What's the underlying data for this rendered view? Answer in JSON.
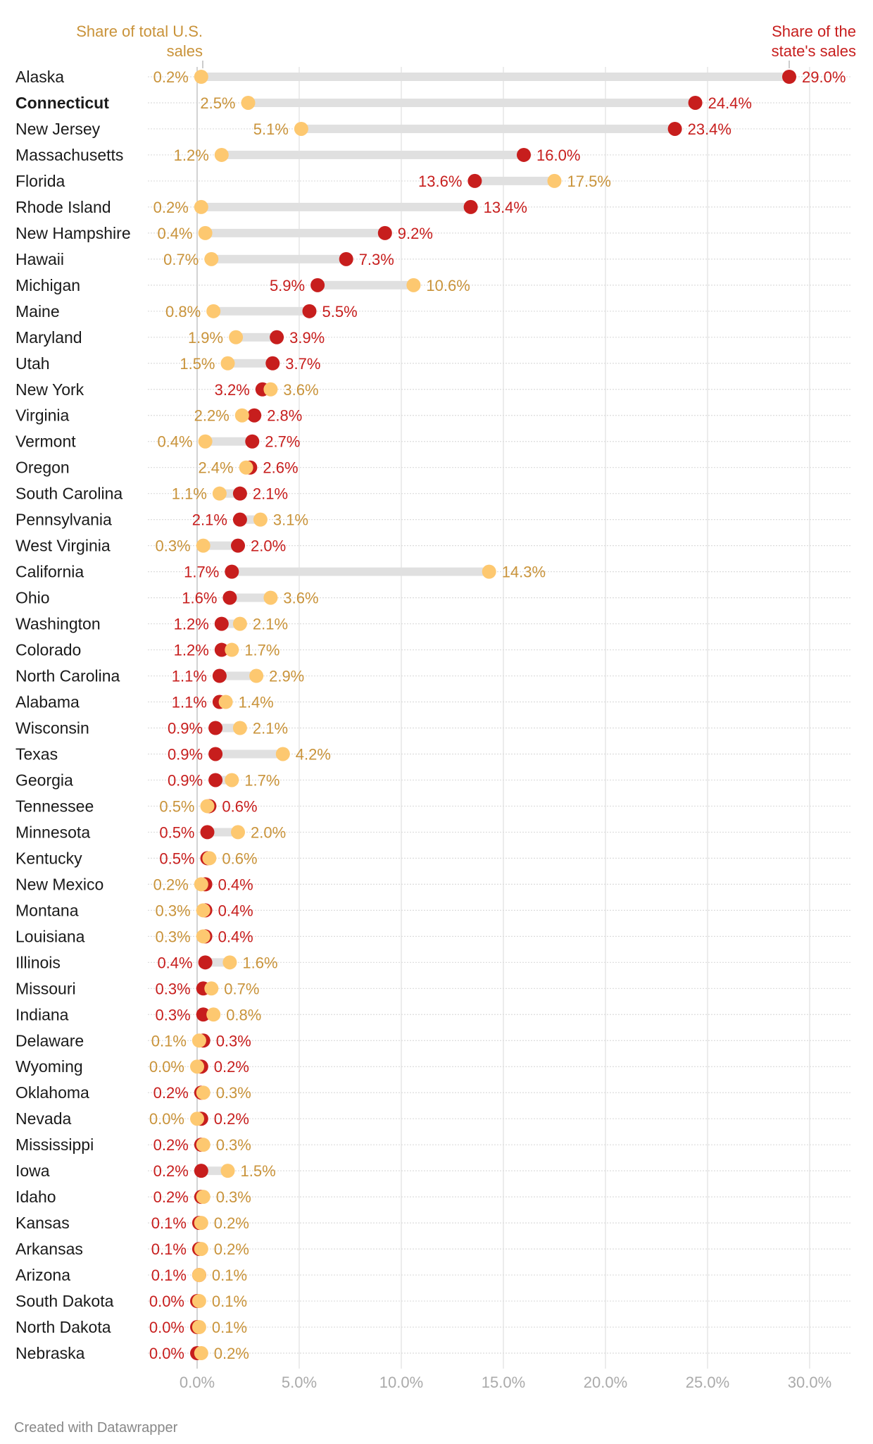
{
  "colors": {
    "state": "#c71e1d",
    "us": "#fdc870",
    "us_text": "#c9933a",
    "bar": "#e0e0e0"
  },
  "chart_data": {
    "type": "dot-range",
    "xlim": [
      0,
      32
    ],
    "x_ticks": [
      "0.0%",
      "5.0%",
      "10.0%",
      "15.0%",
      "20.0%",
      "25.0%",
      "30.0%"
    ],
    "x_tick_values": [
      0,
      5,
      10,
      15,
      20,
      25,
      30
    ],
    "grid": true,
    "series": [
      {
        "key": "us",
        "name": "Share of total U.S. sales"
      },
      {
        "key": "state",
        "name": "Share of the state's sales"
      }
    ],
    "highlight": "Connecticut",
    "rows": [
      {
        "state": "Alaska",
        "us": 0.2,
        "share": 29.0
      },
      {
        "state": "Connecticut",
        "us": 2.5,
        "share": 24.4
      },
      {
        "state": "New Jersey",
        "us": 5.1,
        "share": 23.4
      },
      {
        "state": "Massachusetts",
        "us": 1.2,
        "share": 16.0
      },
      {
        "state": "Florida",
        "us": 17.5,
        "share": 13.6
      },
      {
        "state": "Rhode Island",
        "us": 0.2,
        "share": 13.4
      },
      {
        "state": "New Hampshire",
        "us": 0.4,
        "share": 9.2
      },
      {
        "state": "Hawaii",
        "us": 0.7,
        "share": 7.3
      },
      {
        "state": "Michigan",
        "us": 10.6,
        "share": 5.9
      },
      {
        "state": "Maine",
        "us": 0.8,
        "share": 5.5
      },
      {
        "state": "Maryland",
        "us": 1.9,
        "share": 3.9
      },
      {
        "state": "Utah",
        "us": 1.5,
        "share": 3.7
      },
      {
        "state": "New York",
        "us": 3.6,
        "share": 3.2
      },
      {
        "state": "Virginia",
        "us": 2.2,
        "share": 2.8
      },
      {
        "state": "Vermont",
        "us": 0.4,
        "share": 2.7
      },
      {
        "state": "Oregon",
        "us": 2.4,
        "share": 2.6
      },
      {
        "state": "South Carolina",
        "us": 1.1,
        "share": 2.1
      },
      {
        "state": "Pennsylvania",
        "us": 3.1,
        "share": 2.1
      },
      {
        "state": "West Virginia",
        "us": 0.3,
        "share": 2.0
      },
      {
        "state": "California",
        "us": 14.3,
        "share": 1.7
      },
      {
        "state": "Ohio",
        "us": 3.6,
        "share": 1.6
      },
      {
        "state": "Washington",
        "us": 2.1,
        "share": 1.2
      },
      {
        "state": "Colorado",
        "us": 1.7,
        "share": 1.2
      },
      {
        "state": "North Carolina",
        "us": 2.9,
        "share": 1.1
      },
      {
        "state": "Alabama",
        "us": 1.4,
        "share": 1.1
      },
      {
        "state": "Wisconsin",
        "us": 2.1,
        "share": 0.9
      },
      {
        "state": "Texas",
        "us": 4.2,
        "share": 0.9
      },
      {
        "state": "Georgia",
        "us": 1.7,
        "share": 0.9
      },
      {
        "state": "Tennessee",
        "us": 0.5,
        "share": 0.6
      },
      {
        "state": "Minnesota",
        "us": 2.0,
        "share": 0.5
      },
      {
        "state": "Kentucky",
        "us": 0.6,
        "share": 0.5
      },
      {
        "state": "New Mexico",
        "us": 0.2,
        "share": 0.4
      },
      {
        "state": "Montana",
        "us": 0.3,
        "share": 0.4
      },
      {
        "state": "Louisiana",
        "us": 0.3,
        "share": 0.4
      },
      {
        "state": "Illinois",
        "us": 1.6,
        "share": 0.4
      },
      {
        "state": "Missouri",
        "us": 0.7,
        "share": 0.3
      },
      {
        "state": "Indiana",
        "us": 0.8,
        "share": 0.3
      },
      {
        "state": "Delaware",
        "us": 0.1,
        "share": 0.3
      },
      {
        "state": "Wyoming",
        "us": 0.0,
        "share": 0.2
      },
      {
        "state": "Oklahoma",
        "us": 0.3,
        "share": 0.2
      },
      {
        "state": "Nevada",
        "us": 0.0,
        "share": 0.2
      },
      {
        "state": "Mississippi",
        "us": 0.3,
        "share": 0.2
      },
      {
        "state": "Iowa",
        "us": 1.5,
        "share": 0.2
      },
      {
        "state": "Idaho",
        "us": 0.3,
        "share": 0.2
      },
      {
        "state": "Kansas",
        "us": 0.2,
        "share": 0.1
      },
      {
        "state": "Arkansas",
        "us": 0.2,
        "share": 0.1
      },
      {
        "state": "Arizona",
        "us": 0.1,
        "share": 0.1
      },
      {
        "state": "South Dakota",
        "us": 0.1,
        "share": 0.0
      },
      {
        "state": "North Dakota",
        "us": 0.1,
        "share": 0.0
      },
      {
        "state": "Nebraska",
        "us": 0.2,
        "share": 0.0
      }
    ]
  },
  "header": {
    "us_label_line1": "Share of total U.S.",
    "us_label_line2": "sales",
    "state_label_line1": "Share of the",
    "state_label_line2": "state's sales"
  },
  "footer": {
    "credit": "Created with Datawrapper"
  }
}
